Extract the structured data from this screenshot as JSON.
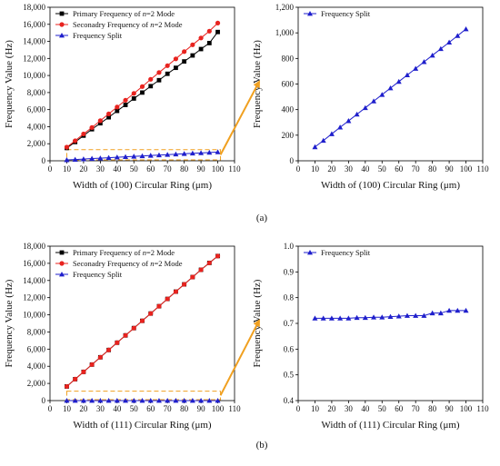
{
  "panels": [
    {
      "label": "(a)"
    },
    {
      "label": "(b)"
    }
  ],
  "chart_data": [
    {
      "type": "line",
      "x": [
        10,
        15,
        20,
        25,
        30,
        35,
        40,
        45,
        50,
        55,
        60,
        65,
        70,
        75,
        80,
        85,
        90,
        95,
        100
      ],
      "series": [
        {
          "name": "Primary Frequency of n=2 Mode",
          "legend_parts": [
            "Primary Frequency of ",
            "n",
            "=2 Mode"
          ],
          "marker": "square",
          "color": "#000000",
          "values": [
            1500,
            2200,
            2950,
            3700,
            4400,
            5100,
            5850,
            6550,
            7300,
            8000,
            8750,
            9450,
            10200,
            10900,
            11650,
            12350,
            13100,
            13800,
            15100
          ]
        },
        {
          "name": "Seconadry Frequency of n=2 Mode",
          "legend_parts": [
            "Seconadry Frequency of ",
            "n",
            "=2 Mode"
          ],
          "marker": "circle",
          "color": "#e8231f",
          "values": [
            1600,
            2350,
            3150,
            3900,
            4700,
            5500,
            6300,
            7100,
            7900,
            8700,
            9550,
            10350,
            11150,
            11950,
            12800,
            13600,
            14400,
            15200,
            16150
          ]
        },
        {
          "name": "Frequency Split",
          "legend_parts": [
            "Frequency Split"
          ],
          "marker": "triangle",
          "color": "#1f1fcc",
          "values": [
            100,
            150,
            200,
            260,
            310,
            365,
            415,
            465,
            515,
            565,
            620,
            670,
            720,
            770,
            825,
            875,
            925,
            975,
            1030
          ]
        }
      ],
      "xlabel": "Width of (100) Circular Ring (μm)",
      "ylabel": "Frequency Value (Hz)",
      "xticks": [
        0,
        10,
        20,
        30,
        40,
        50,
        60,
        70,
        80,
        90,
        100,
        110
      ],
      "yticks": [
        0,
        2000,
        4000,
        6000,
        8000,
        10000,
        12000,
        14000,
        16000,
        18000
      ],
      "yticklabels": [
        "0",
        "2,000",
        "4,000",
        "6,000",
        "8,000",
        "10,000",
        "12,000",
        "14,000",
        "16,000",
        "18,000"
      ],
      "xlim": [
        0,
        110
      ],
      "ylim": [
        0,
        18000
      ],
      "legend": "top-left",
      "zoom_box": {
        "x": [
          10,
          100
        ],
        "y": [
          0,
          1300
        ],
        "color": "#f0a020"
      }
    },
    {
      "type": "line",
      "x": [
        10,
        15,
        20,
        25,
        30,
        35,
        40,
        45,
        50,
        55,
        60,
        65,
        70,
        75,
        80,
        85,
        90,
        95,
        100
      ],
      "series": [
        {
          "name": "Frequency Split",
          "legend_parts": [
            "Frequency Split"
          ],
          "marker": "triangle",
          "color": "#1f1fcc",
          "values": [
            108,
            158,
            210,
            262,
            312,
            363,
            414,
            466,
            517,
            568,
            619,
            670,
            721,
            773,
            824,
            875,
            926,
            977,
            1030
          ]
        }
      ],
      "xlabel": "Width of (100) Circular Ring (μm)",
      "ylabel": "Frequency Value (Hz)",
      "xticks": [
        0,
        10,
        20,
        30,
        40,
        50,
        60,
        70,
        80,
        90,
        100,
        110
      ],
      "yticks": [
        0,
        200,
        400,
        600,
        800,
        1000,
        1200
      ],
      "yticklabels": [
        "0",
        "200",
        "400",
        "600",
        "800",
        "1,000",
        "1,200"
      ],
      "xlim": [
        0,
        110
      ],
      "ylim": [
        0,
        1200
      ],
      "legend": "top-left"
    },
    {
      "type": "line",
      "x": [
        10,
        15,
        20,
        25,
        30,
        35,
        40,
        45,
        50,
        55,
        60,
        65,
        70,
        75,
        80,
        85,
        90,
        95,
        100
      ],
      "series": [
        {
          "name": "Primary Frequency of n=2 Mode",
          "legend_parts": [
            "Primary Frequency of ",
            "n",
            "=2 Mode"
          ],
          "marker": "square",
          "color": "#000000",
          "values": [
            1650,
            2500,
            3350,
            4200,
            5050,
            5900,
            6750,
            7600,
            8450,
            9300,
            10150,
            11000,
            11850,
            12700,
            13550,
            14400,
            15250,
            16050,
            16850
          ]
        },
        {
          "name": "Seconadry Frequency of n=2 Mode",
          "legend_parts": [
            "Seconadry Frequency of ",
            "n",
            "=2 Mode"
          ],
          "marker": "circle",
          "color": "#e8231f",
          "values": [
            1650,
            2500,
            3350,
            4200,
            5050,
            5900,
            6750,
            7600,
            8450,
            9300,
            10150,
            11000,
            11850,
            12700,
            13550,
            14400,
            15250,
            16050,
            16850
          ]
        },
        {
          "name": "Frequency Split",
          "legend_parts": [
            "Frequency Split"
          ],
          "marker": "triangle",
          "color": "#1f1fcc",
          "values": [
            1,
            1,
            1,
            1,
            1,
            1,
            1,
            1,
            1,
            1,
            1,
            1,
            1,
            1,
            1,
            1,
            1,
            1,
            1
          ]
        }
      ],
      "xlabel": "Width of (111) Circular Ring (μm)",
      "ylabel": "Frequency Value (Hz)",
      "xticks": [
        0,
        10,
        20,
        30,
        40,
        50,
        60,
        70,
        80,
        90,
        100,
        110
      ],
      "yticks": [
        0,
        2000,
        4000,
        6000,
        8000,
        10000,
        12000,
        14000,
        16000,
        18000
      ],
      "yticklabels": [
        "0",
        "2,000",
        "4,000",
        "6,000",
        "8,000",
        "10,000",
        "12,000",
        "14,000",
        "16,000",
        "18,000"
      ],
      "xlim": [
        0,
        110
      ],
      "ylim": [
        0,
        18000
      ],
      "legend": "top-left",
      "zoom_box": {
        "x": [
          10,
          100
        ],
        "y": [
          0,
          1100
        ],
        "color": "#f0a020"
      }
    },
    {
      "type": "line",
      "x": [
        10,
        15,
        20,
        25,
        30,
        35,
        40,
        45,
        50,
        55,
        60,
        65,
        70,
        75,
        80,
        85,
        90,
        95,
        100
      ],
      "series": [
        {
          "name": "Frequency Split",
          "legend_parts": [
            "Frequency Split"
          ],
          "marker": "triangle",
          "color": "#1f1fcc",
          "values": [
            0.72,
            0.72,
            0.72,
            0.72,
            0.72,
            0.722,
            0.722,
            0.724,
            0.724,
            0.726,
            0.728,
            0.73,
            0.73,
            0.73,
            0.74,
            0.74,
            0.75,
            0.75,
            0.75
          ]
        }
      ],
      "xlabel": "Width of (111) Circular Ring (μm)",
      "ylabel": "Frequency Value (Hz)",
      "xticks": [
        0,
        10,
        20,
        30,
        40,
        50,
        60,
        70,
        80,
        90,
        100,
        110
      ],
      "yticks": [
        0.4,
        0.5,
        0.6,
        0.7,
        0.8,
        0.9,
        1.0
      ],
      "yticklabels": [
        "0.4",
        "0.5",
        "0.6",
        "0.7",
        "0.8",
        "0.9",
        "1.0"
      ],
      "xlim": [
        0,
        110
      ],
      "ylim": [
        0.4,
        1.0
      ],
      "legend": "top-left"
    }
  ]
}
